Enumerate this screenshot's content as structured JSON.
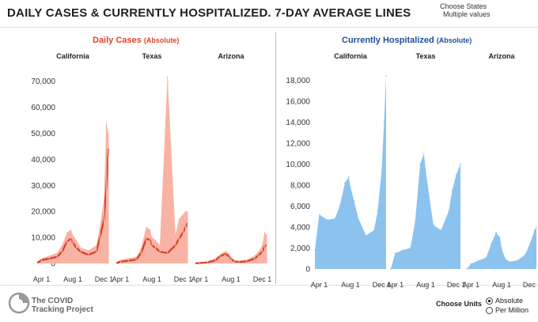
{
  "title": "DAILY CASES & CURRENTLY HOSPITALIZED. 7-DAY AVERAGE LINES",
  "filter": {
    "label": "Choose States",
    "value": "Multiple values"
  },
  "units": {
    "label": "Choose Units",
    "options": [
      "Absolute",
      "Per Million"
    ],
    "selected": "Absolute"
  },
  "logo": {
    "line1": "The COVID",
    "line2": "Tracking Project"
  },
  "colors": {
    "cases_line": "#d93f23",
    "cases_fill": "#f8b3a4",
    "hosp_fill": "#8cc3ee",
    "cases_title": "#e0432a",
    "hosp_title": "#1f4e9a"
  },
  "chart_data": [
    {
      "type": "area",
      "title": "Daily Cases",
      "title_unit": "(Absolute)",
      "states": [
        "California",
        "Texas",
        "Arizona"
      ],
      "x_ticks": [
        "Apr 1",
        "Aug 1",
        "Dec 1"
      ],
      "y_ticks": [
        "0",
        "10,000",
        "20,000",
        "30,000",
        "40,000",
        "50,000",
        "60,000",
        "70,000"
      ],
      "ylim": [
        0,
        72000
      ],
      "x": [
        "Mar 15",
        "Apr 1",
        "May 1",
        "Jun 1",
        "Jun 20",
        "Jul 10",
        "Jul 25",
        "Aug 1",
        "Aug 15",
        "Sep 1",
        "Oct 1",
        "Nov 1",
        "Nov 15",
        "Dec 1",
        "Dec 10",
        "Dec 18"
      ],
      "series": [
        {
          "name": "California",
          "avg": [
            200,
            1300,
            1800,
            2600,
            4500,
            8500,
            9500,
            8000,
            6000,
            4500,
            3300,
            4500,
            10000,
            17000,
            30000,
            44000
          ],
          "daily_max": [
            500,
            2000,
            3000,
            4000,
            7000,
            12000,
            13000,
            11000,
            9000,
            6000,
            5000,
            7000,
            14000,
            25000,
            54000,
            50000
          ]
        },
        {
          "name": "Texas",
          "avg": [
            100,
            700,
            1000,
            1500,
            4000,
            9500,
            9000,
            7000,
            6000,
            4500,
            4000,
            7000,
            9500,
            12000,
            14000,
            15500
          ],
          "daily_max": [
            300,
            1500,
            2000,
            2500,
            6000,
            14000,
            13000,
            10000,
            9000,
            7000,
            72000,
            11000,
            17000,
            19000,
            20000,
            20000
          ]
        },
        {
          "name": "Arizona",
          "avg": [
            50,
            150,
            400,
            1200,
            2800,
            3700,
            2600,
            1700,
            800,
            600,
            800,
            1800,
            3000,
            4500,
            6500,
            7000
          ],
          "daily_max": [
            100,
            300,
            800,
            2000,
            3500,
            4800,
            4000,
            2500,
            1200,
            1000,
            1500,
            3000,
            4500,
            7000,
            12000,
            11000
          ]
        }
      ]
    },
    {
      "type": "area",
      "title": "Currently Hospitalized",
      "title_unit": "(Absolute)",
      "states": [
        "California",
        "Texas",
        "Arizona"
      ],
      "x_ticks": [
        "Apr 1",
        "Aug 1",
        "Dec 1"
      ],
      "y_ticks": [
        "0",
        "2,000",
        "4,000",
        "6,000",
        "8,000",
        "10,000",
        "12,000",
        "14,000",
        "16,000",
        "18,000"
      ],
      "ylim": [
        0,
        18500
      ],
      "x": [
        "Mar 15",
        "Apr 1",
        "May 1",
        "Jun 1",
        "Jun 20",
        "Jul 10",
        "Jul 25",
        "Aug 1",
        "Aug 15",
        "Sep 1",
        "Oct 1",
        "Nov 1",
        "Nov 15",
        "Dec 1",
        "Dec 10",
        "Dec 18"
      ],
      "series": [
        {
          "name": "California",
          "values": [
            1800,
            5200,
            4700,
            4800,
            6000,
            8200,
            8800,
            7800,
            6500,
            4800,
            3200,
            3700,
            5500,
            9500,
            14000,
            18400
          ]
        },
        {
          "name": "Texas",
          "values": [
            0,
            1500,
            1800,
            2000,
            4500,
            10000,
            11000,
            9500,
            7000,
            4200,
            3700,
            5500,
            7500,
            9000,
            9500,
            10000
          ]
        },
        {
          "name": "Arizona",
          "values": [
            0,
            500,
            800,
            1100,
            2400,
            3500,
            3000,
            2000,
            1000,
            700,
            800,
            1300,
            2000,
            3000,
            3700,
            4000
          ]
        }
      ]
    }
  ]
}
